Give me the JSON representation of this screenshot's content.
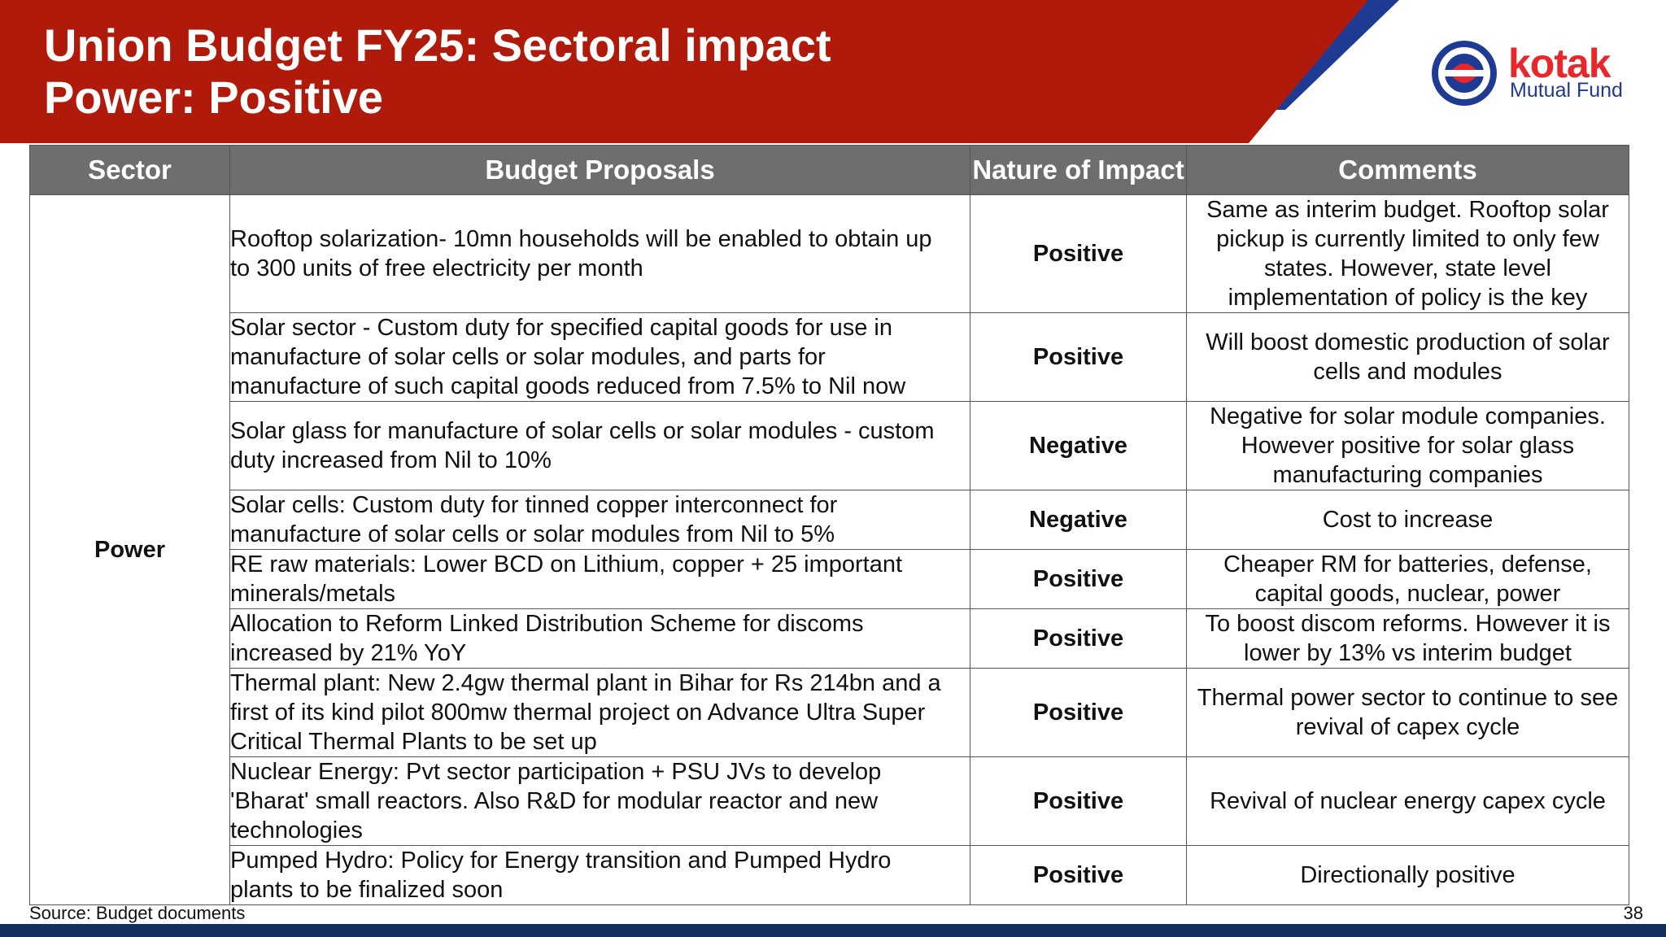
{
  "header": {
    "title_line1": "Union Budget FY25: Sectoral impact",
    "title_line2": "Power: Positive"
  },
  "logo": {
    "brand": "kotak",
    "subtitle": "Mutual Fund"
  },
  "table": {
    "headers": [
      "Sector",
      "Budget Proposals",
      "Nature of Impact",
      "Comments"
    ],
    "sector": "Power",
    "rows": [
      {
        "proposal": [
          "Rooftop solarization- 10mn households will be enabled to obtain up",
          "to 300 units of free electricity per month"
        ],
        "impact": "Positive",
        "comment": [
          "Same as interim budget. Rooftop solar",
          "pickup is currently limited to only few",
          "states. However, state level",
          "implementation of policy is the key"
        ]
      },
      {
        "proposal": [
          "Solar sector - Custom duty for specified capital goods for use in",
          "manufacture of solar cells or solar modules, and parts for",
          "manufacture of such capital goods reduced from 7.5% to Nil now"
        ],
        "impact": "Positive",
        "comment": [
          "Will boost domestic production of solar",
          "cells and modules"
        ]
      },
      {
        "proposal": [
          "Solar glass for manufacture of solar cells or solar modules - custom",
          "duty increased from Nil to 10%"
        ],
        "impact": "Negative",
        "comment": [
          "Negative for solar module companies.",
          "However positive for solar glass",
          "manufacturing companies"
        ]
      },
      {
        "proposal": [
          "Solar cells: Custom duty for tinned copper interconnect for",
          "manufacture of solar cells or solar modules from Nil to 5%"
        ],
        "impact": "Negative",
        "comment": [
          "Cost to increase"
        ]
      },
      {
        "proposal": [
          "RE raw materials: Lower BCD on Lithium, copper + 25 important",
          "minerals/metals"
        ],
        "impact": "Positive",
        "comment": [
          "Cheaper RM for batteries, defense,",
          "capital goods, nuclear, power"
        ]
      },
      {
        "proposal": [
          "Allocation to Reform Linked Distribution Scheme for discoms",
          "increased by 21% YoY"
        ],
        "impact": "Positive",
        "comment": [
          "To boost discom reforms. However it is",
          "lower by 13% vs interim budget"
        ]
      },
      {
        "proposal": [
          "Thermal plant: New 2.4gw thermal plant in Bihar for Rs 214bn and a",
          "first of its kind pilot 800mw thermal project on Advance Ultra Super",
          "Critical Thermal Plants to be set up"
        ],
        "impact": "Positive",
        "comment": [
          "Thermal power sector to continue to see",
          "revival of capex cycle"
        ]
      },
      {
        "proposal": [
          "Nuclear Energy: Pvt sector participation + PSU JVs to develop",
          "'Bharat' small reactors. Also R&D for modular reactor and new",
          "technologies"
        ],
        "impact": "Positive",
        "comment": [
          "Revival of nuclear energy capex cycle"
        ]
      },
      {
        "proposal": [
          "Pumped Hydro: Policy for Energy transition and Pumped Hydro",
          "plants to be finalized soon"
        ],
        "impact": "Positive",
        "comment": [
          "Directionally positive"
        ]
      }
    ]
  },
  "footer": {
    "source": "Source: Budget documents",
    "page_number": "38"
  },
  "colors": {
    "header_red": "#b01a0b",
    "header_navy": "#1f3a93",
    "table_header_grey": "#6e6e6e",
    "positive_green": "#1e9b3c",
    "negative_red": "#d0101b",
    "footer_navy": "#14305f"
  }
}
